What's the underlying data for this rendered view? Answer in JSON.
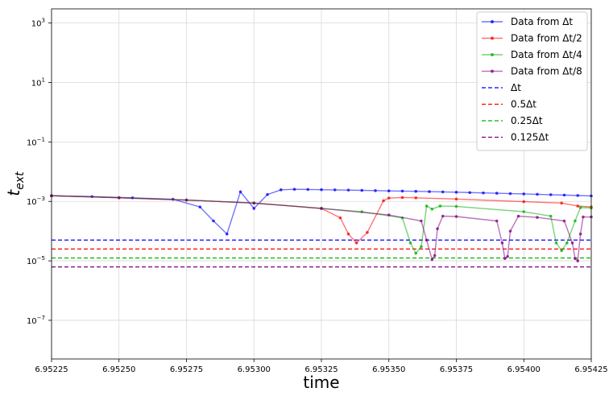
{
  "chart_data": {
    "type": "line",
    "xlabel": "time",
    "ylabel": "t_ext",
    "y_scale": "log",
    "xlim": [
      6.95225,
      6.95425
    ],
    "ylim": [
      5e-09,
      3000.0
    ],
    "x_ticks": [
      {
        "value": 6.95225,
        "label": "6.95225"
      },
      {
        "value": 6.9525,
        "label": "6.95250"
      },
      {
        "value": 6.95275,
        "label": "6.95275"
      },
      {
        "value": 6.953,
        "label": "6.95300"
      },
      {
        "value": 6.95325,
        "label": "6.95325"
      },
      {
        "value": 6.9535,
        "label": "6.95350"
      },
      {
        "value": 6.95375,
        "label": "6.95375"
      },
      {
        "value": 6.954,
        "label": "6.95400"
      },
      {
        "value": 6.95425,
        "label": "6.95425"
      }
    ],
    "y_ticks": [
      {
        "exp": 3,
        "label": "10",
        "sup": "3"
      },
      {
        "exp": 1,
        "label": "10",
        "sup": "1"
      },
      {
        "exp": -1,
        "label": "10",
        "sup": "−1"
      },
      {
        "exp": -3,
        "label": "10",
        "sup": "−3"
      },
      {
        "exp": -5,
        "label": "10",
        "sup": "−5"
      },
      {
        "exp": -7,
        "label": "10",
        "sup": "−7"
      }
    ],
    "grid": true,
    "legend": "top-right",
    "series": [
      {
        "name": "Data from Δt",
        "color": "#0000ff",
        "points": [
          [
            6.95225,
            0.00155
          ],
          [
            6.9524,
            0.00145
          ],
          [
            6.95255,
            0.00132
          ],
          [
            6.9527,
            0.00118
          ],
          [
            6.9528,
            0.00065
          ],
          [
            6.95285,
            0.00022
          ],
          [
            6.9529,
            8e-05
          ],
          [
            6.95295,
            0.0021
          ],
          [
            6.953,
            0.00058
          ],
          [
            6.95305,
            0.0017
          ],
          [
            6.9531,
            0.00245
          ],
          [
            6.95315,
            0.00255
          ],
          [
            6.9532,
            0.00252
          ],
          [
            6.95325,
            0.00248
          ],
          [
            6.9533,
            0.00244
          ],
          [
            6.95335,
            0.0024
          ],
          [
            6.9534,
            0.00235
          ],
          [
            6.95345,
            0.0023
          ],
          [
            6.9535,
            0.00225
          ],
          [
            6.95355,
            0.00222
          ],
          [
            6.9536,
            0.00218
          ],
          [
            6.95365,
            0.00213
          ],
          [
            6.9537,
            0.00208
          ],
          [
            6.95375,
            0.00203
          ],
          [
            6.9538,
            0.00198
          ],
          [
            6.95385,
            0.00193
          ],
          [
            6.9539,
            0.00188
          ],
          [
            6.95395,
            0.00183
          ],
          [
            6.954,
            0.00178
          ],
          [
            6.95405,
            0.00173
          ],
          [
            6.9541,
            0.00168
          ],
          [
            6.95415,
            0.00163
          ],
          [
            6.9542,
            0.00158
          ],
          [
            6.95425,
            0.00153
          ]
        ]
      },
      {
        "name": "Data from Δt/2",
        "color": "#ff0000",
        "points": [
          [
            6.95225,
            0.00155
          ],
          [
            6.9525,
            0.00133
          ],
          [
            6.95275,
            0.00111
          ],
          [
            6.953,
            0.00088
          ],
          [
            6.95325,
            0.00058
          ],
          [
            6.95332,
            0.00028
          ],
          [
            6.95335,
            8e-05
          ],
          [
            6.95338,
            4e-05
          ],
          [
            6.95342,
            9e-05
          ],
          [
            6.95348,
            0.00105
          ],
          [
            6.9535,
            0.0013
          ],
          [
            6.95355,
            0.00135
          ],
          [
            6.9536,
            0.00132
          ],
          [
            6.95375,
            0.0012
          ],
          [
            6.954,
            0.00098
          ],
          [
            6.95414,
            0.00088
          ],
          [
            6.9542,
            0.0007
          ],
          [
            6.95425,
            0.00065
          ]
        ]
      },
      {
        "name": "Data from Δt/4",
        "color": "#00b000",
        "points": [
          [
            6.95225,
            0.00155
          ],
          [
            6.9525,
            0.00133
          ],
          [
            6.95275,
            0.00111
          ],
          [
            6.953,
            0.00088
          ],
          [
            6.95325,
            0.00058
          ],
          [
            6.9534,
            0.00045
          ],
          [
            6.95355,
            0.00028
          ],
          [
            6.95358,
            4e-05
          ],
          [
            6.9536,
            1.8e-05
          ],
          [
            6.95362,
            3e-05
          ],
          [
            6.95364,
            0.0007
          ],
          [
            6.95366,
            0.00055
          ],
          [
            6.95369,
            0.0007
          ],
          [
            6.95375,
            0.00068
          ],
          [
            6.954,
            0.00045
          ],
          [
            6.9541,
            0.00032
          ],
          [
            6.95412,
            4e-05
          ],
          [
            6.95414,
            2.2e-05
          ],
          [
            6.95416,
            4e-05
          ],
          [
            6.95419,
            0.00022
          ],
          [
            6.95421,
            0.00062
          ],
          [
            6.95425,
            0.0006
          ]
        ]
      },
      {
        "name": "Data from Δt/8",
        "color": "#800080",
        "points": [
          [
            6.95225,
            0.00155
          ],
          [
            6.9525,
            0.00133
          ],
          [
            6.95275,
            0.00111
          ],
          [
            6.953,
            0.00088
          ],
          [
            6.95325,
            0.00058
          ],
          [
            6.9535,
            0.00035
          ],
          [
            6.95362,
            0.00022
          ],
          [
            6.95364,
            5e-05
          ],
          [
            6.95366,
            1.1e-05
          ],
          [
            6.95367,
            1.5e-05
          ],
          [
            6.95368,
            0.00012
          ],
          [
            6.9537,
            0.00032
          ],
          [
            6.95375,
            0.00031
          ],
          [
            6.9539,
            0.00022
          ],
          [
            6.95392,
            4e-05
          ],
          [
            6.95393,
            1.2e-05
          ],
          [
            6.95394,
            1.4e-05
          ],
          [
            6.95395,
            0.0001
          ],
          [
            6.95398,
            0.00032
          ],
          [
            6.95405,
            0.00029
          ],
          [
            6.95415,
            0.00022
          ],
          [
            6.95418,
            4e-05
          ],
          [
            6.95419,
            1.2e-05
          ],
          [
            6.9542,
            1e-05
          ],
          [
            6.95421,
            8e-05
          ],
          [
            6.95422,
            0.0003
          ],
          [
            6.95425,
            0.0003
          ]
        ]
      }
    ],
    "reference_lines": [
      {
        "name": "Δt",
        "label": "Δt",
        "value": 5e-05,
        "color": "#0000ff"
      },
      {
        "name": "0.5Δt",
        "label": "0.5Δt",
        "value": 2.5e-05,
        "color": "#ff0000"
      },
      {
        "name": "0.25Δt",
        "label": "0.25Δt",
        "value": 1.25e-05,
        "color": "#00b000"
      },
      {
        "name": "0.125Δt",
        "label": "0.125Δt",
        "value": 6.25e-06,
        "color": "#800080"
      }
    ]
  }
}
